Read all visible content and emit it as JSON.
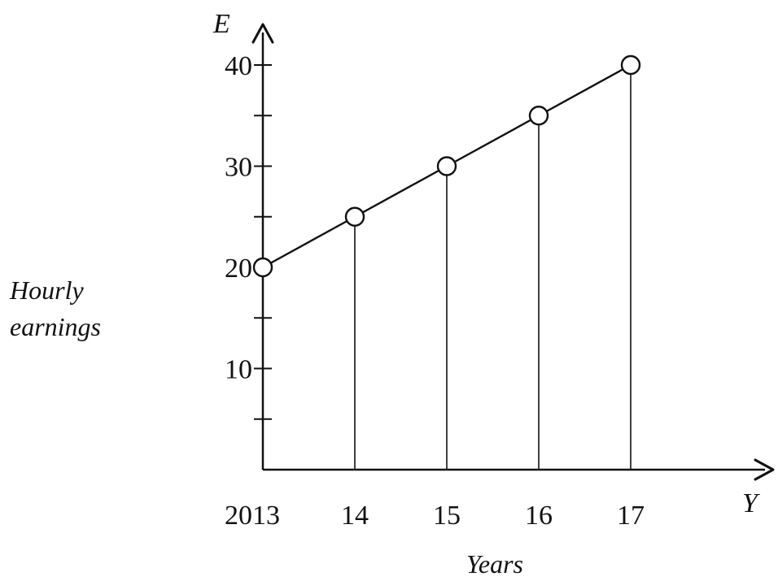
{
  "chart_data": {
    "type": "line",
    "title": "",
    "x_axis_letter": "Y",
    "y_axis_letter": "E",
    "xlabel": "Years",
    "ylabel_lines": [
      "Hourly",
      "earnings"
    ],
    "x_tick_labels": [
      "2013",
      "14",
      "15",
      "16",
      "17"
    ],
    "y_tick_labels": [
      "10",
      "20",
      "30",
      "40"
    ],
    "y_tick_values": [
      10,
      20,
      30,
      40
    ],
    "y_minor_tick_values": [
      5,
      15,
      25,
      35
    ],
    "ylim": [
      0,
      40
    ],
    "grid": false,
    "series": [
      {
        "x": [
          "2013",
          "14",
          "15",
          "16",
          "17"
        ],
        "values": [
          20,
          25,
          30,
          35,
          40
        ]
      }
    ]
  }
}
